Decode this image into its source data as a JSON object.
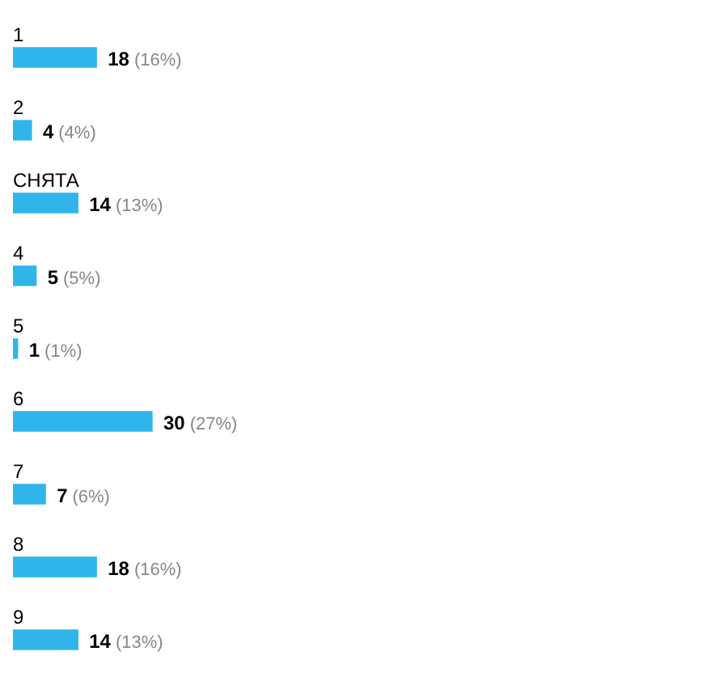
{
  "chart_data": {
    "type": "bar",
    "orientation": "horizontal",
    "categories": [
      "1",
      "2",
      "СНЯТА",
      "4",
      "5",
      "6",
      "7",
      "8",
      "9"
    ],
    "values": [
      18,
      4,
      14,
      5,
      1,
      30,
      7,
      18,
      14
    ],
    "color": "#2fb5ea",
    "value_labels": [
      "18 (16%)",
      "4 (4%)",
      "14 (13%)",
      "5 (5%)",
      "1 (1%)",
      "30 (27%)",
      "7 (6%)",
      "18 (16%)",
      "14 (13%)"
    ]
  }
}
